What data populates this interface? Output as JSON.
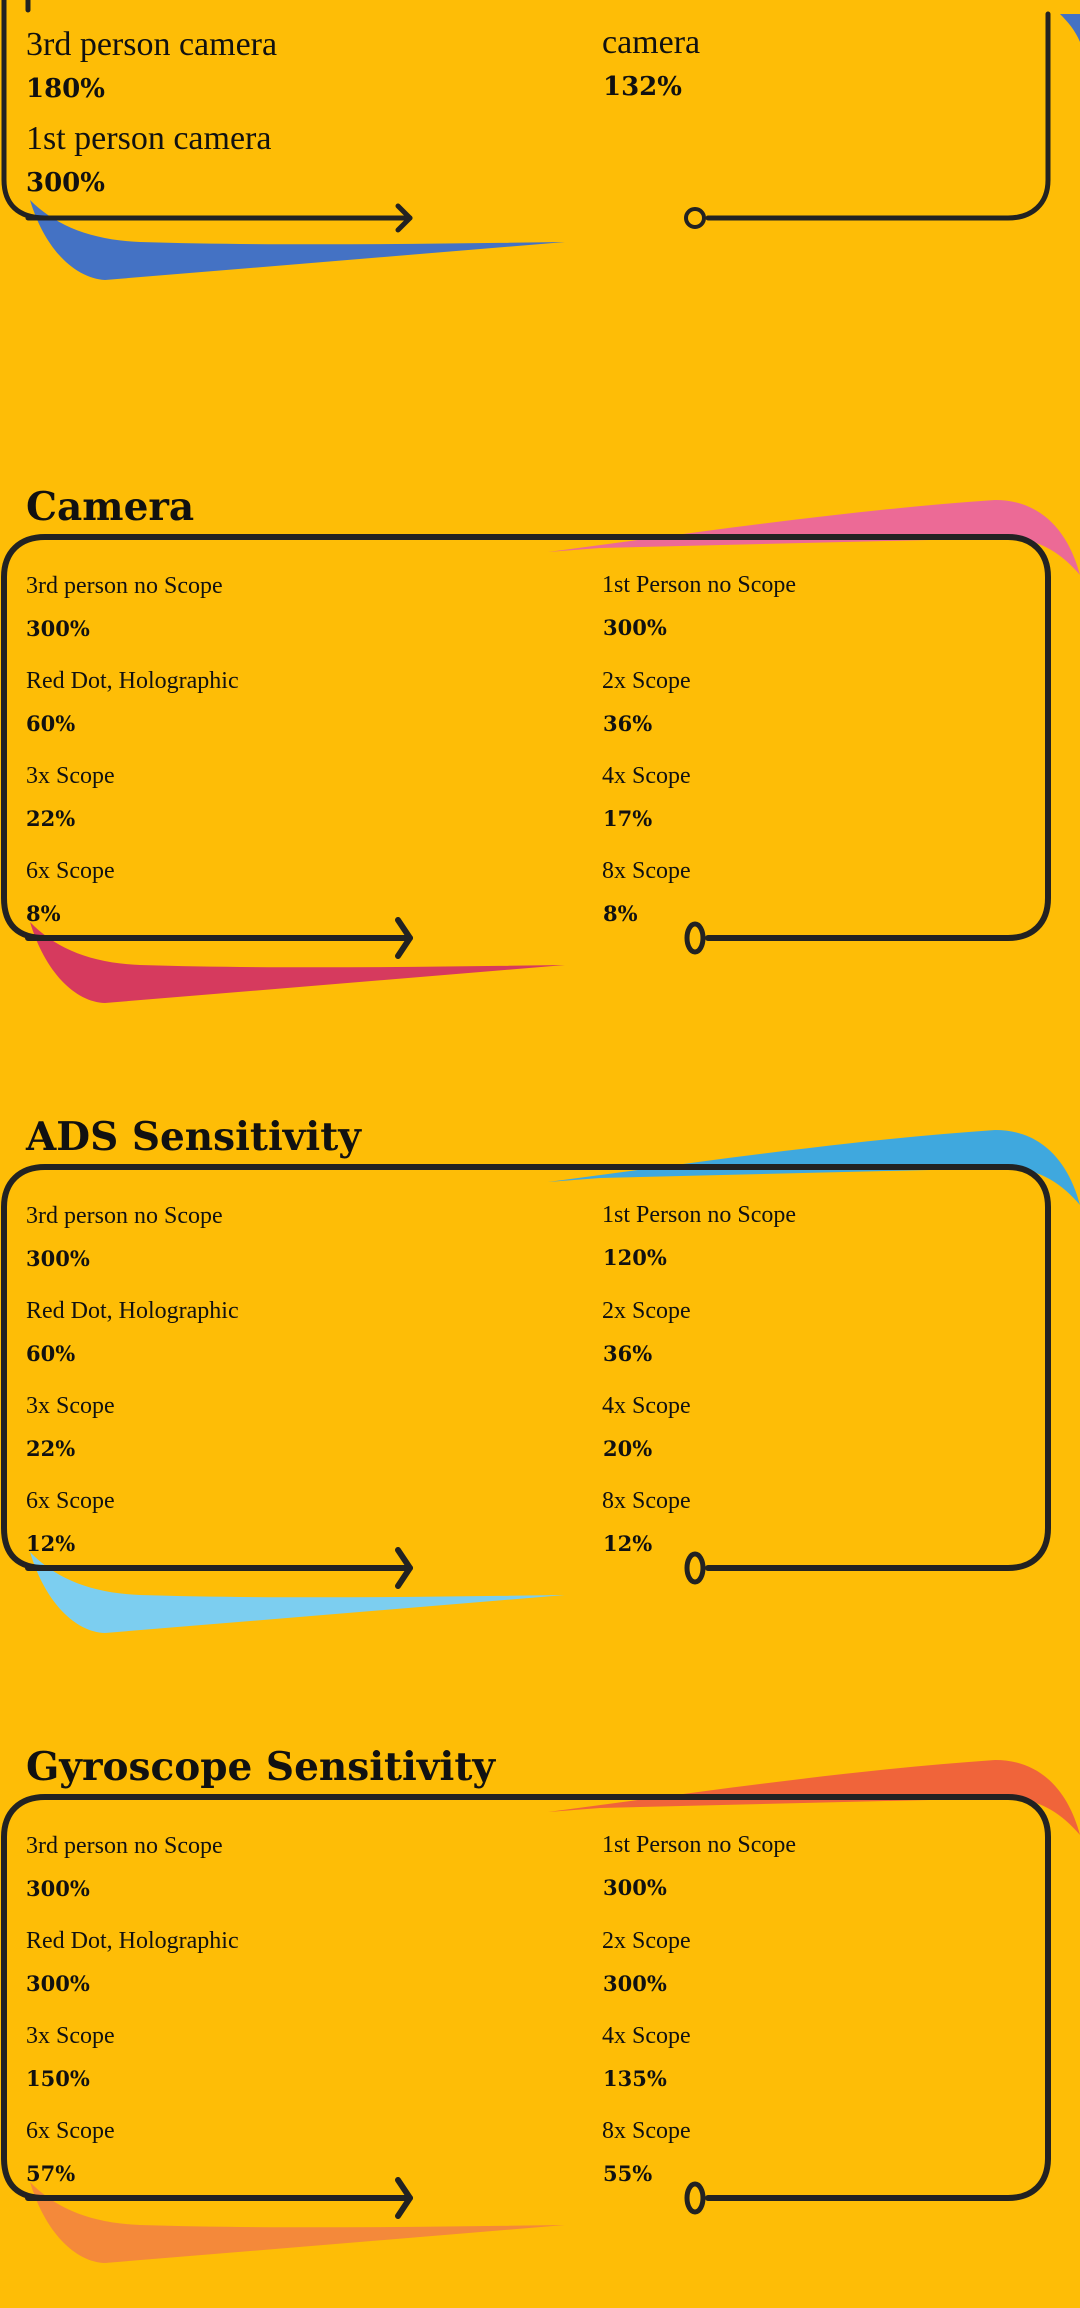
{
  "colors": {
    "background": "#FEBD06",
    "outline": "#222222",
    "top_swoosh": "#4472C4",
    "camera_swoosh_top": "#EC6A96",
    "camera_swoosh_bottom": "#D63A5E",
    "ads_swoosh_top": "#3FA8DE",
    "ads_swoosh_bottom": "#7CCEF0",
    "gyro_swoosh_top": "#F0643A",
    "gyro_swoosh_bottom": "#F4893A"
  },
  "top_card": {
    "items": [
      {
        "label": "3rd person camera",
        "value": "180%"
      },
      {
        "label": "camera",
        "value": "132%"
      },
      {
        "label": "1st person camera",
        "value": "300%"
      }
    ]
  },
  "sections": [
    {
      "title": "Camera",
      "items": [
        {
          "label": "3rd person no Scope",
          "value": "300%"
        },
        {
          "label": "1st Person no Scope",
          "value": "300%"
        },
        {
          "label": "Red Dot, Holographic",
          "value": "60%"
        },
        {
          "label": "2x Scope",
          "value": "36%"
        },
        {
          "label": "3x Scope",
          "value": "22%"
        },
        {
          "label": "4x Scope",
          "value": "17%"
        },
        {
          "label": "6x Scope",
          "value": "8%"
        },
        {
          "label": "8x Scope",
          "value": "8%"
        }
      ]
    },
    {
      "title": "ADS Sensitivity",
      "items": [
        {
          "label": "3rd person no Scope",
          "value": "300%"
        },
        {
          "label": "1st Person no Scope",
          "value": "120%"
        },
        {
          "label": "Red Dot, Holographic",
          "value": "60%"
        },
        {
          "label": "2x Scope",
          "value": "36%"
        },
        {
          "label": "3x Scope",
          "value": "22%"
        },
        {
          "label": "4x Scope",
          "value": "20%"
        },
        {
          "label": "6x Scope",
          "value": "12%"
        },
        {
          "label": "8x Scope",
          "value": "12%"
        }
      ]
    },
    {
      "title": "Gyroscope Sensitivity",
      "items": [
        {
          "label": "3rd person no Scope",
          "value": "300%"
        },
        {
          "label": "1st Person no Scope",
          "value": "300%"
        },
        {
          "label": "Red Dot, Holographic",
          "value": "300%"
        },
        {
          "label": "2x Scope",
          "value": "300%"
        },
        {
          "label": "3x Scope",
          "value": "150%"
        },
        {
          "label": "4x Scope",
          "value": "135%"
        },
        {
          "label": "6x Scope",
          "value": "57%"
        },
        {
          "label": "8x Scope",
          "value": "55%"
        }
      ]
    }
  ]
}
